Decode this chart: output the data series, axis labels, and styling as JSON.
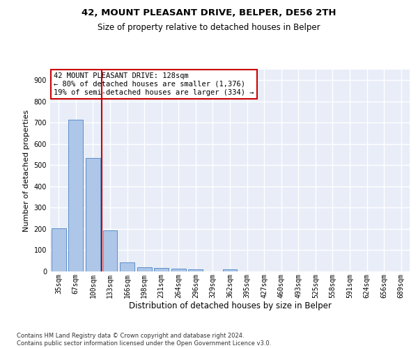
{
  "title": "42, MOUNT PLEASANT DRIVE, BELPER, DE56 2TH",
  "subtitle": "Size of property relative to detached houses in Belper",
  "xlabel": "Distribution of detached houses by size in Belper",
  "ylabel": "Number of detached properties",
  "categories": [
    "35sqm",
    "67sqm",
    "100sqm",
    "133sqm",
    "166sqm",
    "198sqm",
    "231sqm",
    "264sqm",
    "296sqm",
    "329sqm",
    "362sqm",
    "395sqm",
    "427sqm",
    "460sqm",
    "493sqm",
    "525sqm",
    "558sqm",
    "591sqm",
    "624sqm",
    "656sqm",
    "689sqm"
  ],
  "values": [
    202,
    714,
    535,
    193,
    42,
    20,
    15,
    14,
    10,
    0,
    10,
    0,
    0,
    0,
    0,
    0,
    0,
    0,
    0,
    0,
    0
  ],
  "bar_color": "#aec6e8",
  "bar_edge_color": "#5b8fc9",
  "bg_color": "#e8edf8",
  "grid_color": "#ffffff",
  "vline_x": 2.5,
  "vline_color": "#cc0000",
  "annotation_text": "42 MOUNT PLEASANT DRIVE: 128sqm\n← 80% of detached houses are smaller (1,376)\n19% of semi-detached houses are larger (334) →",
  "annotation_box_color": "#ffffff",
  "annotation_box_edge": "#cc0000",
  "footnote": "Contains HM Land Registry data © Crown copyright and database right 2024.\nContains public sector information licensed under the Open Government Licence v3.0.",
  "ylim": [
    0,
    950
  ],
  "yticks": [
    0,
    100,
    200,
    300,
    400,
    500,
    600,
    700,
    800,
    900
  ],
  "title_fontsize": 9.5,
  "subtitle_fontsize": 8.5,
  "ylabel_fontsize": 8,
  "xlabel_fontsize": 8.5,
  "tick_fontsize": 7,
  "annot_fontsize": 7.5,
  "footnote_fontsize": 6
}
